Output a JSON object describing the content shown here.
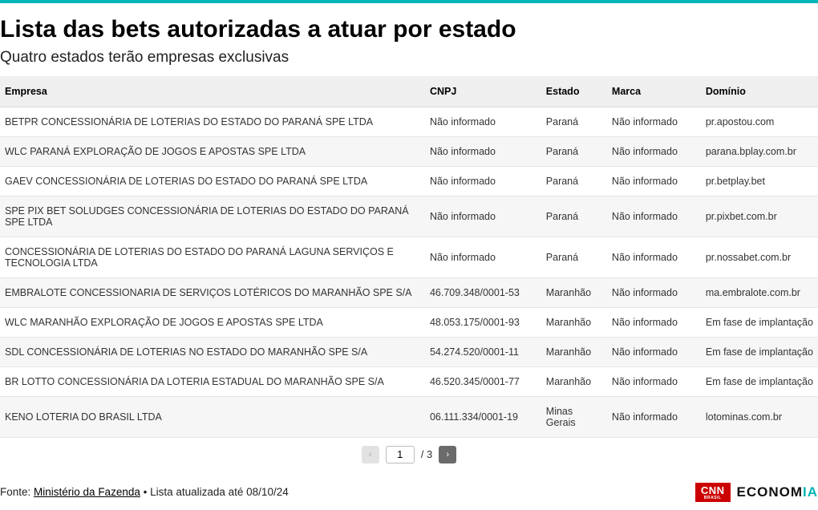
{
  "header": {
    "title": "Lista das bets autorizadas a atuar por estado",
    "subtitle": "Quatro estados terão empresas exclusivas"
  },
  "table": {
    "columns": {
      "empresa": "Empresa",
      "cnpj": "CNPJ",
      "estado": "Estado",
      "marca": "Marca",
      "dominio": "Domínio"
    },
    "rows": [
      {
        "empresa": "BETPR CONCESSIONÁRIA DE LOTERIAS DO ESTADO DO PARANÁ SPE LTDA",
        "cnpj": "Não informado",
        "estado": "Paraná",
        "marca": "Não informado",
        "dominio": "pr.apostou.com"
      },
      {
        "empresa": "WLC PARANÁ EXPLORAÇÃO DE JOGOS E APOSTAS SPE LTDA",
        "cnpj": "Não informado",
        "estado": "Paraná",
        "marca": "Não informado",
        "dominio": "parana.bplay.com.br"
      },
      {
        "empresa": "GAEV CONCESSIONÁRIA DE LOTERIAS DO ESTADO DO PARANÁ SPE LTDA",
        "cnpj": "Não informado",
        "estado": "Paraná",
        "marca": "Não informado",
        "dominio": "pr.betplay.bet"
      },
      {
        "empresa": "SPE PIX BET SOLUDGES CONCESSIONÁRIA DE LOTERIAS DO ESTADO DO PARANÁ SPE LTDA",
        "cnpj": "Não informado",
        "estado": "Paraná",
        "marca": "Não informado",
        "dominio": "pr.pixbet.com.br"
      },
      {
        "empresa": "CONCESSIONÁRIA DE LOTERIAS DO ESTADO DO PARANÁ LAGUNA SERVIÇOS E TECNOLOGIA LTDA",
        "cnpj": "Não informado",
        "estado": "Paraná",
        "marca": "Não informado",
        "dominio": "pr.nossabet.com.br"
      },
      {
        "empresa": "EMBRALOTE CONCESSIONARIA DE SERVIÇOS LOTÉRICOS DO MARANHÃO SPE S/A",
        "cnpj": "46.709.348/0001-53",
        "estado": "Maranhão",
        "marca": "Não informado",
        "dominio": "ma.embralote.com.br"
      },
      {
        "empresa": "WLC MARANHÃO EXPLORAÇÃO DE JOGOS E APOSTAS SPE LTDA",
        "cnpj": "48.053.175/0001-93",
        "estado": "Maranhão",
        "marca": "Não informado",
        "dominio": "Em fase de implantação"
      },
      {
        "empresa": "SDL CONCESSIONÁRIA DE LOTERIAS NO ESTADO DO MARANHÃO SPE S/A",
        "cnpj": "54.274.520/0001-11",
        "estado": "Maranhão",
        "marca": "Não informado",
        "dominio": "Em fase de implantação"
      },
      {
        "empresa": "BR LOTTO CONCESSIONÁRIA DA LOTERIA ESTADUAL DO MARANHÃO SPE S/A",
        "cnpj": "46.520.345/0001-77",
        "estado": "Maranhão",
        "marca": "Não informado",
        "dominio": "Em fase de implantação"
      },
      {
        "empresa": "KENO LOTERIA DO BRASIL LTDA",
        "cnpj": "06.111.334/0001-19",
        "estado": "Minas Gerais",
        "marca": "Não informado",
        "dominio": "lotominas.com.br"
      }
    ]
  },
  "pager": {
    "prev": "‹",
    "current": "1",
    "total_label": "/ 3",
    "next": "›"
  },
  "footer": {
    "source_prefix": "Fonte: ",
    "source_link": "Ministério da Fazenda",
    "updated": " • Lista atualizada até 08/10/24",
    "brand_cnn": "CNN",
    "brand_cnn_sub": "BRASIL",
    "brand_econ_prefix": "ECONOM",
    "brand_econ_suffix": "IA"
  }
}
